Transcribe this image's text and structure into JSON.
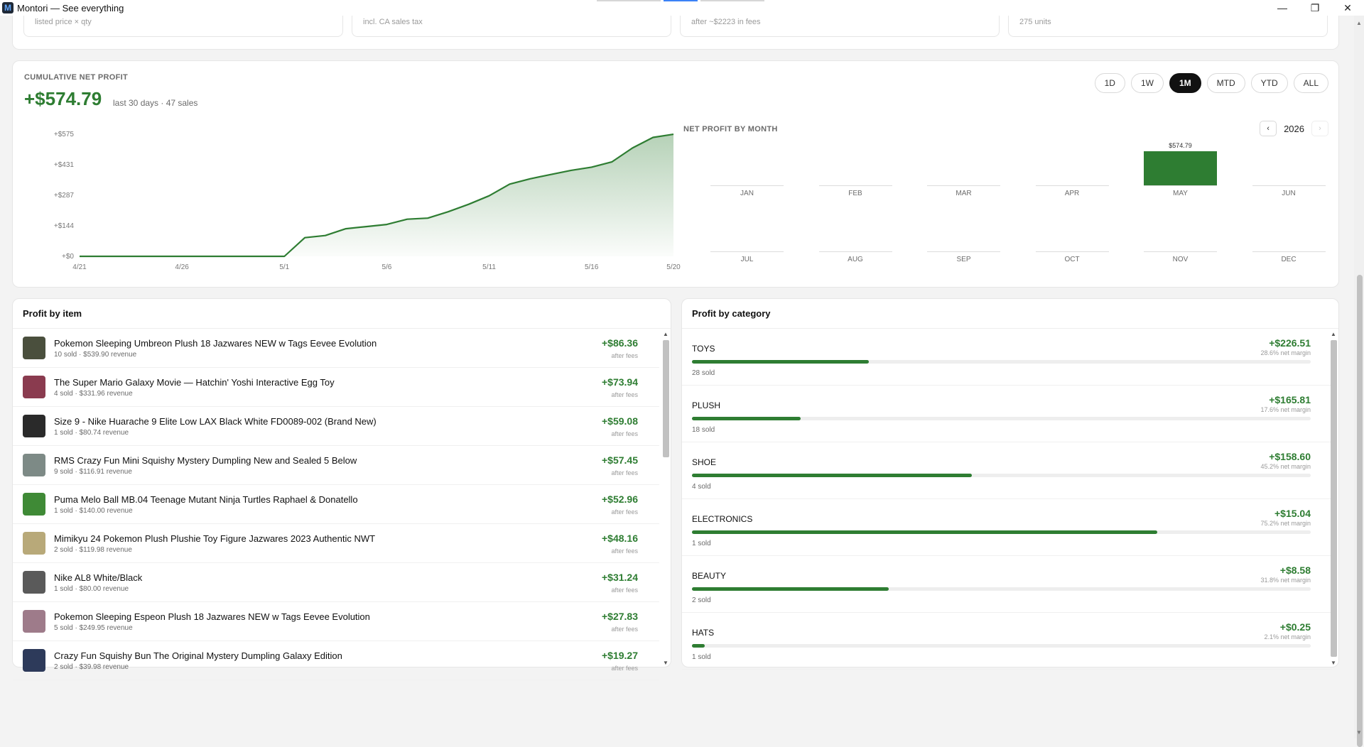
{
  "window": {
    "title": "Montori — See everything",
    "logo_letter": "M"
  },
  "stats": [
    {
      "sub": "listed price × qty"
    },
    {
      "sub": "incl. CA sales tax"
    },
    {
      "sub": "after ~$2223 in fees"
    },
    {
      "sub": "275 units"
    }
  ],
  "cumulative": {
    "label": "CUMULATIVE NET PROFIT",
    "value": "+$574.79",
    "sub": "last 30 days · 47 sales",
    "ranges": [
      "1D",
      "1W",
      "1M",
      "MTD",
      "YTD",
      "ALL"
    ],
    "active_range": "1M"
  },
  "chart_data": [
    {
      "type": "area",
      "title": "",
      "x": [
        "4/21",
        "4/22",
        "4/23",
        "4/24",
        "4/25",
        "4/26",
        "4/27",
        "4/28",
        "4/29",
        "4/30",
        "5/1",
        "5/2",
        "5/3",
        "5/4",
        "5/5",
        "5/6",
        "5/7",
        "5/8",
        "5/9",
        "5/10",
        "5/11",
        "5/12",
        "5/13",
        "5/14",
        "5/15",
        "5/16",
        "5/17",
        "5/18",
        "5/19",
        "5/20"
      ],
      "x_tick_labels": [
        "4/21",
        "4/26",
        "5/1",
        "5/6",
        "5/11",
        "5/16",
        "5/20"
      ],
      "y_tick_labels": [
        "+$0",
        "+$144",
        "+$287",
        "+$431",
        "+$575"
      ],
      "series": [
        {
          "values": [
            0,
            0,
            0,
            0,
            0,
            0,
            0,
            0,
            0,
            0,
            0,
            88,
            98,
            130,
            140,
            150,
            175,
            180,
            210,
            245,
            285,
            340,
            365,
            385,
            405,
            420,
            445,
            510,
            560,
            574.79
          ]
        }
      ],
      "ylim": [
        0,
        575
      ],
      "grid": false,
      "color": "#2e7d32"
    },
    {
      "type": "bar",
      "title": "NET PROFIT BY MONTH",
      "year": "2026",
      "categories": [
        "JAN",
        "FEB",
        "MAR",
        "APR",
        "MAY",
        "JUN",
        "JUL",
        "AUG",
        "SEP",
        "OCT",
        "NOV",
        "DEC"
      ],
      "values": [
        0,
        0,
        0,
        0,
        574.79,
        0,
        0,
        0,
        0,
        0,
        0,
        0
      ],
      "value_labels": [
        "",
        "",
        "",
        "",
        "$574.79",
        "",
        "",
        "",
        "",
        "",
        "",
        ""
      ],
      "color": "#2e7d32"
    }
  ],
  "items_card": {
    "title": "Profit by item",
    "items": [
      {
        "name": "Pokemon Sleeping Umbreon Plush 18 Jazwares NEW w Tags Eevee Evolution",
        "meta": "10 sold · $539.90 revenue",
        "profit": "+$86.36",
        "fees": "after fees",
        "thumb_color": "#4a4f3d"
      },
      {
        "name": "The Super Mario Galaxy Movie — Hatchin' Yoshi Interactive Egg Toy",
        "meta": "4 sold · $331.96 revenue",
        "profit": "+$73.94",
        "fees": "after fees",
        "thumb_color": "#8a3b4f"
      },
      {
        "name": "Size 9 - Nike Huarache 9 Elite Low LAX Black White FD0089-002 (Brand New)",
        "meta": "1 sold · $80.74 revenue",
        "profit": "+$59.08",
        "fees": "after fees",
        "thumb_color": "#2a2a2a"
      },
      {
        "name": "RMS Crazy Fun Mini Squishy Mystery Dumpling New and Sealed 5 Below",
        "meta": "9 sold · $116.91 revenue",
        "profit": "+$57.45",
        "fees": "after fees",
        "thumb_color": "#7d8a86"
      },
      {
        "name": "Puma Melo Ball MB.04 Teenage Mutant Ninja Turtles Raphael & Donatello",
        "meta": "1 sold · $140.00 revenue",
        "profit": "+$52.96",
        "fees": "after fees",
        "thumb_color": "#3f8a36"
      },
      {
        "name": "Mimikyu 24 Pokemon Plush Plushie Toy Figure Jazwares 2023 Authentic NWT",
        "meta": "2 sold · $119.98 revenue",
        "profit": "+$48.16",
        "fees": "after fees",
        "thumb_color": "#b8a979"
      },
      {
        "name": "Nike AL8 White/Black",
        "meta": "1 sold · $80.00 revenue",
        "profit": "+$31.24",
        "fees": "after fees",
        "thumb_color": "#5a5a5a"
      },
      {
        "name": "Pokemon Sleeping Espeon Plush 18 Jazwares NEW w Tags Eevee Evolution",
        "meta": "5 sold · $249.95 revenue",
        "profit": "+$27.83",
        "fees": "after fees",
        "thumb_color": "#9e7b8a"
      },
      {
        "name": "Crazy Fun Squishy Bun The Original Mystery Dumpling Galaxy Edition",
        "meta": "2 sold · $39.98 revenue",
        "profit": "+$19.27",
        "fees": "after fees",
        "thumb_color": "#2d3a5a"
      }
    ]
  },
  "category_card": {
    "title": "Profit by category",
    "categories": [
      {
        "name": "TOYS",
        "sold": "28 sold",
        "profit": "+$226.51",
        "margin": "28.6% net margin",
        "margin_pct": 28.6
      },
      {
        "name": "PLUSH",
        "sold": "18 sold",
        "profit": "+$165.81",
        "margin": "17.6% net margin",
        "margin_pct": 17.6
      },
      {
        "name": "SHOE",
        "sold": "4 sold",
        "profit": "+$158.60",
        "margin": "45.2% net margin",
        "margin_pct": 45.2
      },
      {
        "name": "ELECTRONICS",
        "sold": "1 sold",
        "profit": "+$15.04",
        "margin": "75.2% net margin",
        "margin_pct": 75.2
      },
      {
        "name": "BEAUTY",
        "sold": "2 sold",
        "profit": "+$8.58",
        "margin": "31.8% net margin",
        "margin_pct": 31.8
      },
      {
        "name": "HATS",
        "sold": "1 sold",
        "profit": "+$0.25",
        "margin": "2.1% net margin",
        "margin_pct": 2.1
      }
    ]
  },
  "colors": {
    "accent": "#2e7d32",
    "active_range_bg": "#111111"
  }
}
